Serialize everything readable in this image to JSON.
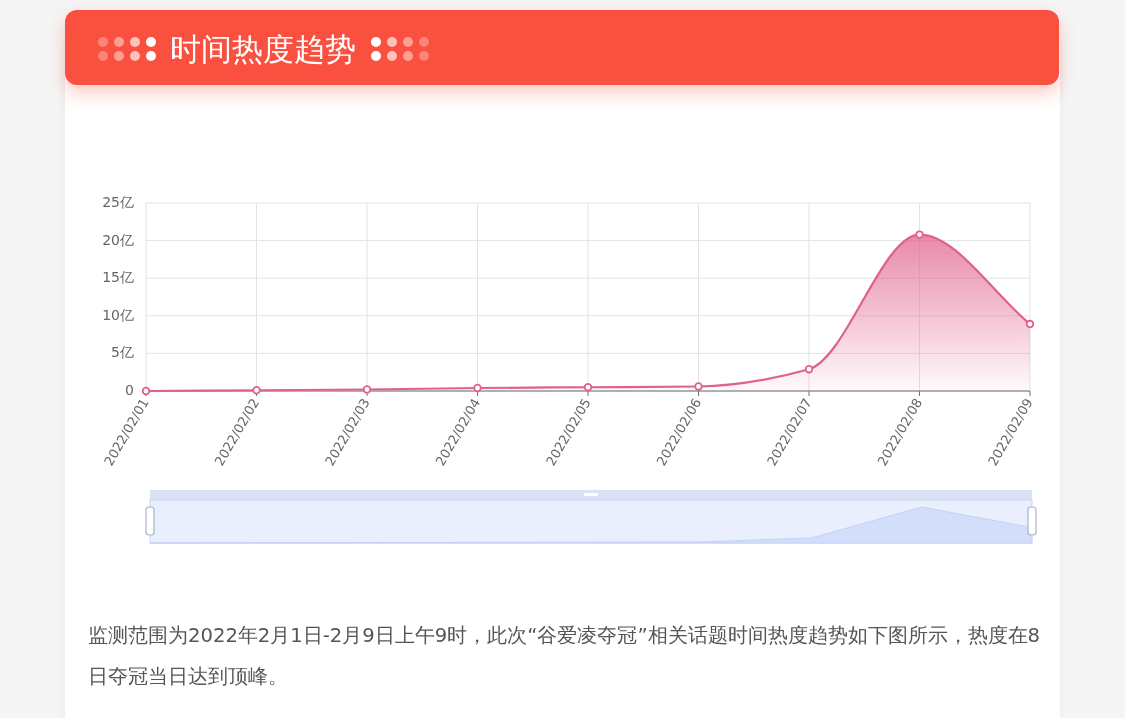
{
  "chart_data": {
    "type": "area",
    "title": "时间热度趋势",
    "categories": [
      "2022/02/01",
      "2022/02/02",
      "2022/02/03",
      "2022/02/04",
      "2022/02/05",
      "2022/02/06",
      "2022/02/07",
      "2022/02/08",
      "2022/02/09"
    ],
    "series": [
      {
        "color": "#e0628c",
        "values": [
          0,
          0.1,
          0.2,
          0.4,
          0.5,
          0.6,
          2.9,
          20.8,
          8.9
        ]
      }
    ],
    "ylim": [
      0,
      25
    ],
    "yticks": [
      0,
      {
        "value": 5,
        "label": "5亿"
      },
      {
        "value": 10,
        "label": "10亿"
      },
      {
        "value": 15,
        "label": "15亿"
      },
      {
        "value": 20,
        "label": "20亿"
      },
      {
        "value": 25,
        "label": "25亿"
      }
    ],
    "grid": true,
    "marker": "circle",
    "line_style": "solid",
    "annotations": [
      "监测范围为2022年2月1日-2月9日上午9时，此次“谷爱凌夺冠”相关话题时间热度趋势如下图所示，热度在8日夺冠当日达到顶峰。"
    ]
  }
}
